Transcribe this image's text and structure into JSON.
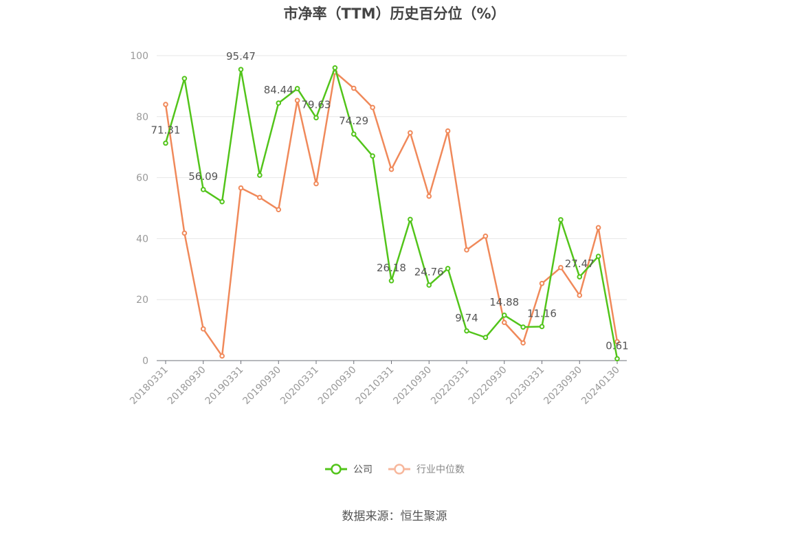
{
  "chart_data": {
    "type": "line",
    "title": "市净率（TTM）历史百分位（%）",
    "xlabel": "",
    "ylabel": "",
    "ylim": [
      0,
      100
    ],
    "yticks": [
      0,
      20,
      40,
      60,
      80,
      100
    ],
    "x": [
      "20180331",
      "20180630",
      "20180930",
      "20181231",
      "20190331",
      "20190630",
      "20190930",
      "20191231",
      "20200331",
      "20200630",
      "20200930",
      "20201231",
      "20210331",
      "20210630",
      "20210930",
      "20211231",
      "20220331",
      "20220630",
      "20220930",
      "20221231",
      "20230331",
      "20230630",
      "20230930",
      "20231231",
      "20240130"
    ],
    "x_tick_labels": [
      "20180331",
      "20180930",
      "20190331",
      "20190930",
      "20200331",
      "20200930",
      "20210331",
      "20210930",
      "20220331",
      "20220930",
      "20230331",
      "20230930",
      "20240130"
    ],
    "series": [
      {
        "name": "公司",
        "color": "#52c41a",
        "values": [
          71.31,
          92.5,
          56.09,
          52.1,
          95.47,
          60.8,
          84.44,
          89.2,
          79.63,
          96.0,
          74.29,
          67.1,
          26.18,
          46.3,
          24.76,
          30.2,
          9.74,
          7.6,
          14.88,
          11.0,
          11.16,
          46.2,
          27.47,
          34.2,
          0.61
        ],
        "labels": [
          "71.31",
          "",
          "56.09",
          "",
          "95.47",
          "",
          "84.44",
          "",
          "79.63",
          "",
          "74.29",
          "",
          "26.18",
          "",
          "24.76",
          "",
          "9.74",
          "",
          "14.88",
          "",
          "11.16",
          "",
          "27.47",
          "",
          "0.61"
        ]
      },
      {
        "name": "行业中位数",
        "color": "#f0895a",
        "values": [
          84.0,
          41.8,
          10.4,
          1.5,
          56.6,
          53.5,
          49.5,
          85.3,
          58.0,
          94.6,
          89.3,
          83.0,
          62.7,
          74.7,
          53.9,
          75.3,
          36.3,
          40.8,
          12.5,
          5.8,
          25.3,
          30.5,
          21.4,
          43.6,
          6.2
        ]
      }
    ],
    "legend_position": "bottom",
    "grid": true
  },
  "legend": {
    "company": "公司",
    "industry": "行业中位数"
  },
  "source_text": "数据来源：恒生聚源"
}
